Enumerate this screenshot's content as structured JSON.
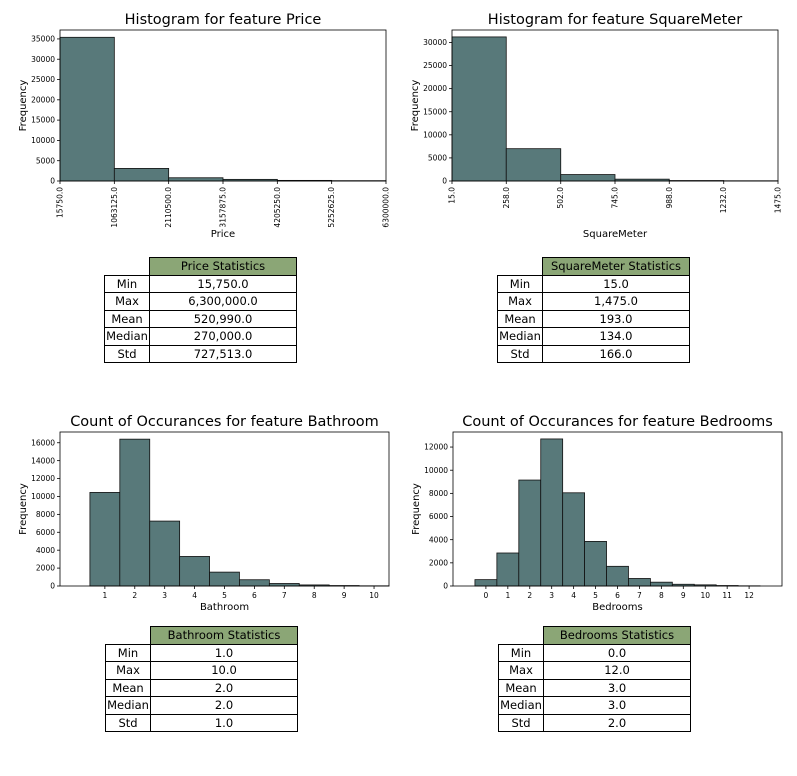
{
  "colors": {
    "bar": "#58797a",
    "edge": "#111111",
    "table_header": "#8ba676"
  },
  "chart_data": [
    {
      "type": "bar",
      "title": "Histogram for feature Price",
      "xlabel": "Price",
      "ylabel": "Frequency",
      "bin_edges": [
        15750,
        1063125,
        2110500,
        3157875,
        4205250,
        5252625,
        6300000
      ],
      "bin_edge_labels": [
        "15750.0",
        "1063125.0",
        "2110500.0",
        "3157875.0",
        "4205250.0",
        "5252625.0",
        "6300000.0"
      ],
      "values": [
        35400,
        3100,
        800,
        400,
        150,
        80
      ],
      "ylim": [
        0,
        37200
      ],
      "yticks": [
        0,
        5000,
        10000,
        15000,
        20000,
        25000,
        30000,
        35000
      ],
      "grid": false
    },
    {
      "type": "bar",
      "title": "Histogram for feature SquareMeter",
      "xlabel": "SquareMeter",
      "ylabel": "Frequency",
      "bin_edges": [
        15,
        258,
        502,
        745,
        988,
        1232,
        1475
      ],
      "bin_edge_labels": [
        "15.0",
        "258.0",
        "502.0",
        "745.0",
        "988.0",
        "1232.0",
        "1475.0"
      ],
      "values": [
        31200,
        7000,
        1400,
        400,
        100,
        50
      ],
      "ylim": [
        0,
        32700
      ],
      "yticks": [
        0,
        5000,
        10000,
        15000,
        20000,
        25000,
        30000
      ],
      "grid": false
    },
    {
      "type": "bar",
      "title": "Count of Occurances for feature Bathroom",
      "xlabel": "Bathroom",
      "ylabel": "Frequency",
      "categories": [
        1,
        2,
        3,
        4,
        5,
        6,
        7,
        8,
        9,
        10
      ],
      "values": [
        10450,
        16400,
        7250,
        3300,
        1550,
        700,
        280,
        120,
        50,
        20
      ],
      "xlim": [
        -0.5,
        10.5
      ],
      "ylim": [
        0,
        17200
      ],
      "yticks": [
        0,
        2000,
        4000,
        6000,
        8000,
        10000,
        12000,
        14000,
        16000
      ],
      "grid": false
    },
    {
      "type": "bar",
      "title": "Count of Occurances for feature Bedrooms",
      "xlabel": "Bedrooms",
      "ylabel": "Frequency",
      "categories": [
        0,
        1,
        2,
        3,
        4,
        5,
        6,
        7,
        8,
        9,
        10,
        11,
        12
      ],
      "values": [
        550,
        2850,
        9150,
        12700,
        8050,
        3850,
        1700,
        650,
        330,
        150,
        100,
        40,
        15
      ],
      "xlim": [
        -1.5,
        13.5
      ],
      "ylim": [
        0,
        13300
      ],
      "yticks": [
        0,
        2000,
        4000,
        6000,
        8000,
        10000,
        12000
      ],
      "grid": false
    }
  ],
  "tables": [
    {
      "header": "Price Statistics",
      "rows": [
        {
          "label": "Min",
          "value": "15,750.0"
        },
        {
          "label": "Max",
          "value": "6,300,000.0"
        },
        {
          "label": "Mean",
          "value": "520,990.0"
        },
        {
          "label": "Median",
          "value": "270,000.0"
        },
        {
          "label": "Std",
          "value": "727,513.0"
        }
      ]
    },
    {
      "header": "SquareMeter Statistics",
      "rows": [
        {
          "label": "Min",
          "value": "15.0"
        },
        {
          "label": "Max",
          "value": "1,475.0"
        },
        {
          "label": "Mean",
          "value": "193.0"
        },
        {
          "label": "Median",
          "value": "134.0"
        },
        {
          "label": "Std",
          "value": "166.0"
        }
      ]
    },
    {
      "header": "Bathroom Statistics",
      "rows": [
        {
          "label": "Min",
          "value": "1.0"
        },
        {
          "label": "Max",
          "value": "10.0"
        },
        {
          "label": "Mean",
          "value": "2.0"
        },
        {
          "label": "Median",
          "value": "2.0"
        },
        {
          "label": "Std",
          "value": "1.0"
        }
      ]
    },
    {
      "header": "Bedrooms Statistics",
      "rows": [
        {
          "label": "Min",
          "value": "0.0"
        },
        {
          "label": "Max",
          "value": "12.0"
        },
        {
          "label": "Mean",
          "value": "3.0"
        },
        {
          "label": "Median",
          "value": "3.0"
        },
        {
          "label": "Std",
          "value": "2.0"
        }
      ]
    }
  ]
}
